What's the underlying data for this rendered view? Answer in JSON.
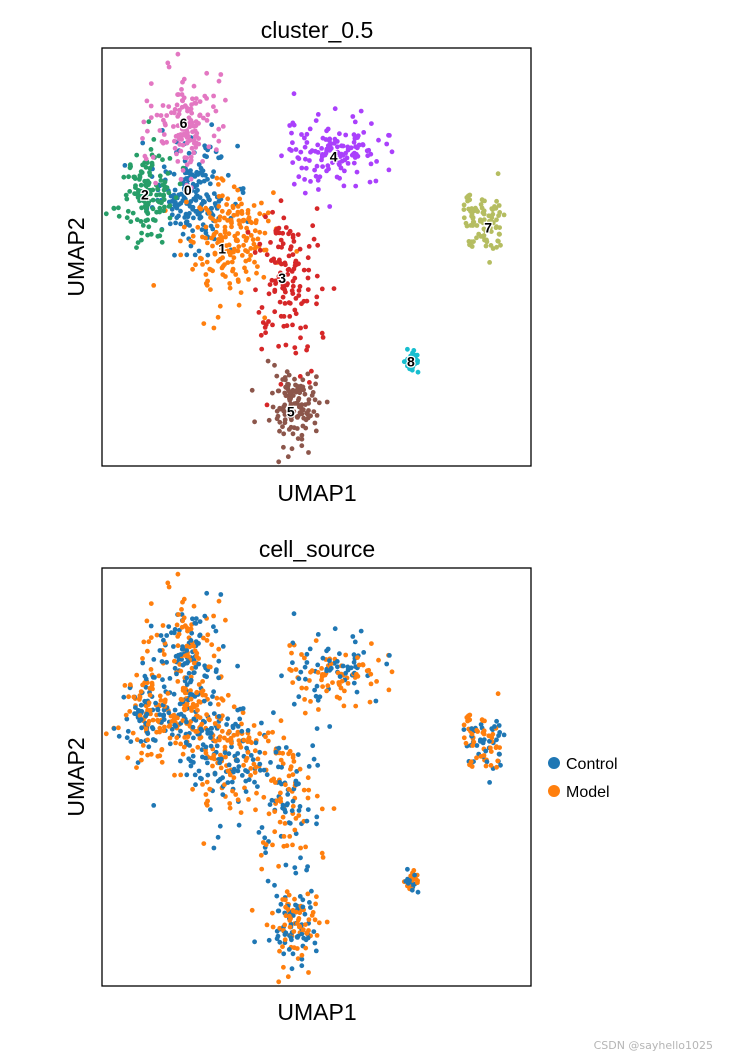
{
  "chart_data": [
    {
      "type": "scatter",
      "title": "cluster_0.5",
      "xlabel": "UMAP1",
      "ylabel": "UMAP2",
      "grid": false,
      "legend": "on data",
      "colors": {
        "0": "#1f77b4",
        "1": "#ff7f0e",
        "2": "#279e68",
        "3": "#d62728",
        "4": "#aa40fc",
        "5": "#8c564b",
        "6": "#e377c2",
        "7": "#b5bd61",
        "8": "#17becf"
      },
      "clusters": [
        {
          "name": "0",
          "cx": 0.21,
          "cy": 0.65,
          "sx": 0.045,
          "sy": 0.06,
          "n": 190
        },
        {
          "name": "1",
          "cx": 0.29,
          "cy": 0.54,
          "sx": 0.05,
          "sy": 0.07,
          "n": 190
        },
        {
          "name": "2",
          "cx": 0.1,
          "cy": 0.65,
          "sx": 0.035,
          "sy": 0.055,
          "n": 140
        },
        {
          "name": "3",
          "cx": 0.43,
          "cy": 0.45,
          "sx": 0.04,
          "sy": 0.09,
          "n": 140
        },
        {
          "name": "4",
          "cx": 0.54,
          "cy": 0.75,
          "sx": 0.06,
          "sy": 0.04,
          "n": 140
        },
        {
          "name": "5",
          "cx": 0.45,
          "cy": 0.14,
          "sx": 0.03,
          "sy": 0.045,
          "n": 130
        },
        {
          "name": "6",
          "cx": 0.2,
          "cy": 0.82,
          "sx": 0.04,
          "sy": 0.06,
          "n": 140
        },
        {
          "name": "7",
          "cx": 0.89,
          "cy": 0.58,
          "sx": 0.025,
          "sy": 0.035,
          "n": 90
        },
        {
          "name": "8",
          "cx": 0.72,
          "cy": 0.25,
          "sx": 0.01,
          "sy": 0.012,
          "n": 30
        }
      ],
      "cluster_labels": [
        {
          "text": "0",
          "x": 0.2,
          "y": 0.66
        },
        {
          "text": "1",
          "x": 0.28,
          "y": 0.52
        },
        {
          "text": "2",
          "x": 0.1,
          "y": 0.65
        },
        {
          "text": "3",
          "x": 0.42,
          "y": 0.45
        },
        {
          "text": "4",
          "x": 0.54,
          "y": 0.74
        },
        {
          "text": "5",
          "x": 0.44,
          "y": 0.13
        },
        {
          "text": "6",
          "x": 0.19,
          "y": 0.82
        },
        {
          "text": "7",
          "x": 0.9,
          "y": 0.57
        },
        {
          "text": "8",
          "x": 0.72,
          "y": 0.25
        }
      ]
    },
    {
      "type": "scatter",
      "title": "cell_source",
      "xlabel": "UMAP1",
      "ylabel": "UMAP2",
      "grid": false,
      "legend": "right",
      "series": [
        {
          "name": "Control",
          "color": "#1f77b4"
        },
        {
          "name": "Model",
          "color": "#ff7f0e"
        }
      ]
    }
  ],
  "watermark": "CSDN @sayhello1025"
}
